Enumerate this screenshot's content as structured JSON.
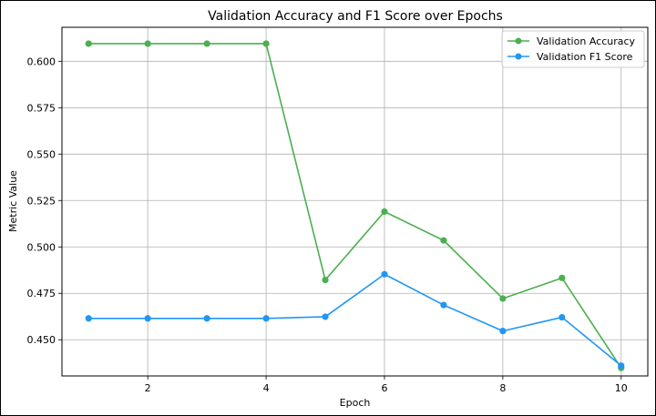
{
  "chart_data": {
    "type": "line",
    "title": "Validation Accuracy and F1 Score over Epochs",
    "xlabel": "Epoch",
    "ylabel": "Metric Value",
    "x": [
      1,
      2,
      3,
      4,
      5,
      6,
      7,
      8,
      9,
      10
    ],
    "xlim": [
      0.55,
      10.45
    ],
    "ylim": [
      0.4305,
      0.6183
    ],
    "xticks": [
      2,
      4,
      6,
      8,
      10
    ],
    "yticks": [
      0.45,
      0.475,
      0.5,
      0.525,
      0.55,
      0.575,
      0.6
    ],
    "xtick_labels": [
      "2",
      "4",
      "6",
      "8",
      "10"
    ],
    "ytick_labels": [
      "0.450",
      "0.475",
      "0.500",
      "0.525",
      "0.550",
      "0.575",
      "0.600"
    ],
    "grid": true,
    "legend_position": "top-right",
    "series": [
      {
        "name": "Validation Accuracy",
        "color": "#4caf50",
        "marker": "circle",
        "values": [
          0.6095,
          0.6095,
          0.6095,
          0.6095,
          0.4822,
          0.519,
          0.5035,
          0.4722,
          0.4833,
          0.4348
        ]
      },
      {
        "name": "Validation F1 Score",
        "color": "#2196f3",
        "marker": "circle",
        "values": [
          0.4615,
          0.4615,
          0.4615,
          0.4615,
          0.4624,
          0.4853,
          0.4687,
          0.4547,
          0.4621,
          0.436
        ]
      }
    ]
  }
}
